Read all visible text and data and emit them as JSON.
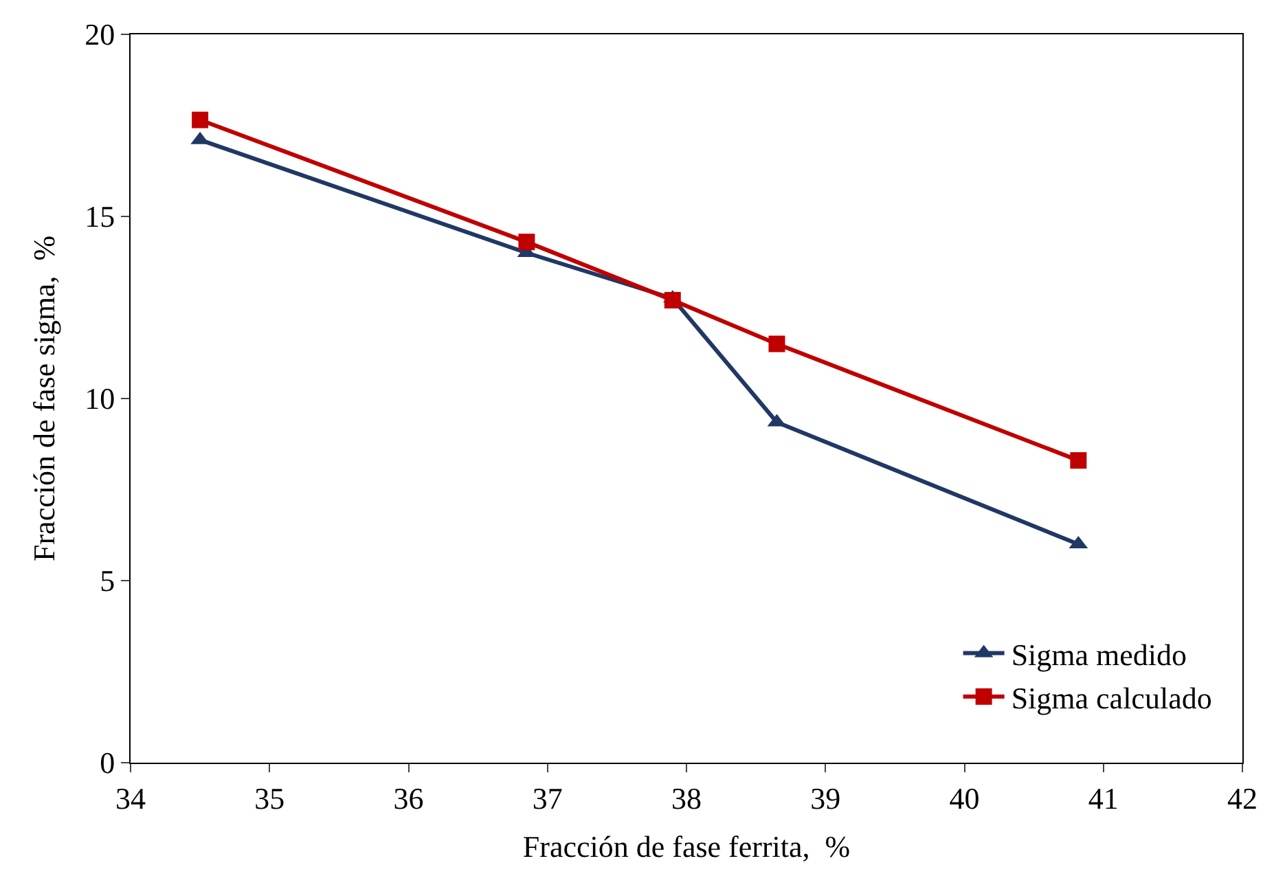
{
  "chart_data": {
    "type": "line",
    "xlabel": "Fracción de fase ferrita,  %",
    "ylabel": "Fracción de fase sigma,  %",
    "xlim": [
      34,
      42
    ],
    "xticks": [
      34,
      35,
      36,
      37,
      38,
      39,
      40,
      41,
      42
    ],
    "ylim": [
      0,
      20
    ],
    "yticks": [
      0,
      5,
      10,
      15,
      20
    ],
    "legend": "bottom right",
    "series": [
      {
        "name": "Sigma medido",
        "color": "#203864",
        "marker": "triangle",
        "x": [
          34.5,
          36.85,
          37.9,
          38.65,
          40.82
        ],
        "values": [
          17.1,
          14.0,
          12.75,
          9.35,
          6.0
        ]
      },
      {
        "name": "Sigma calculado",
        "color": "#c00000",
        "marker": "square",
        "x": [
          34.5,
          36.85,
          37.9,
          38.65,
          40.82
        ],
        "values": [
          17.65,
          14.3,
          12.7,
          11.5,
          8.3
        ]
      }
    ]
  }
}
